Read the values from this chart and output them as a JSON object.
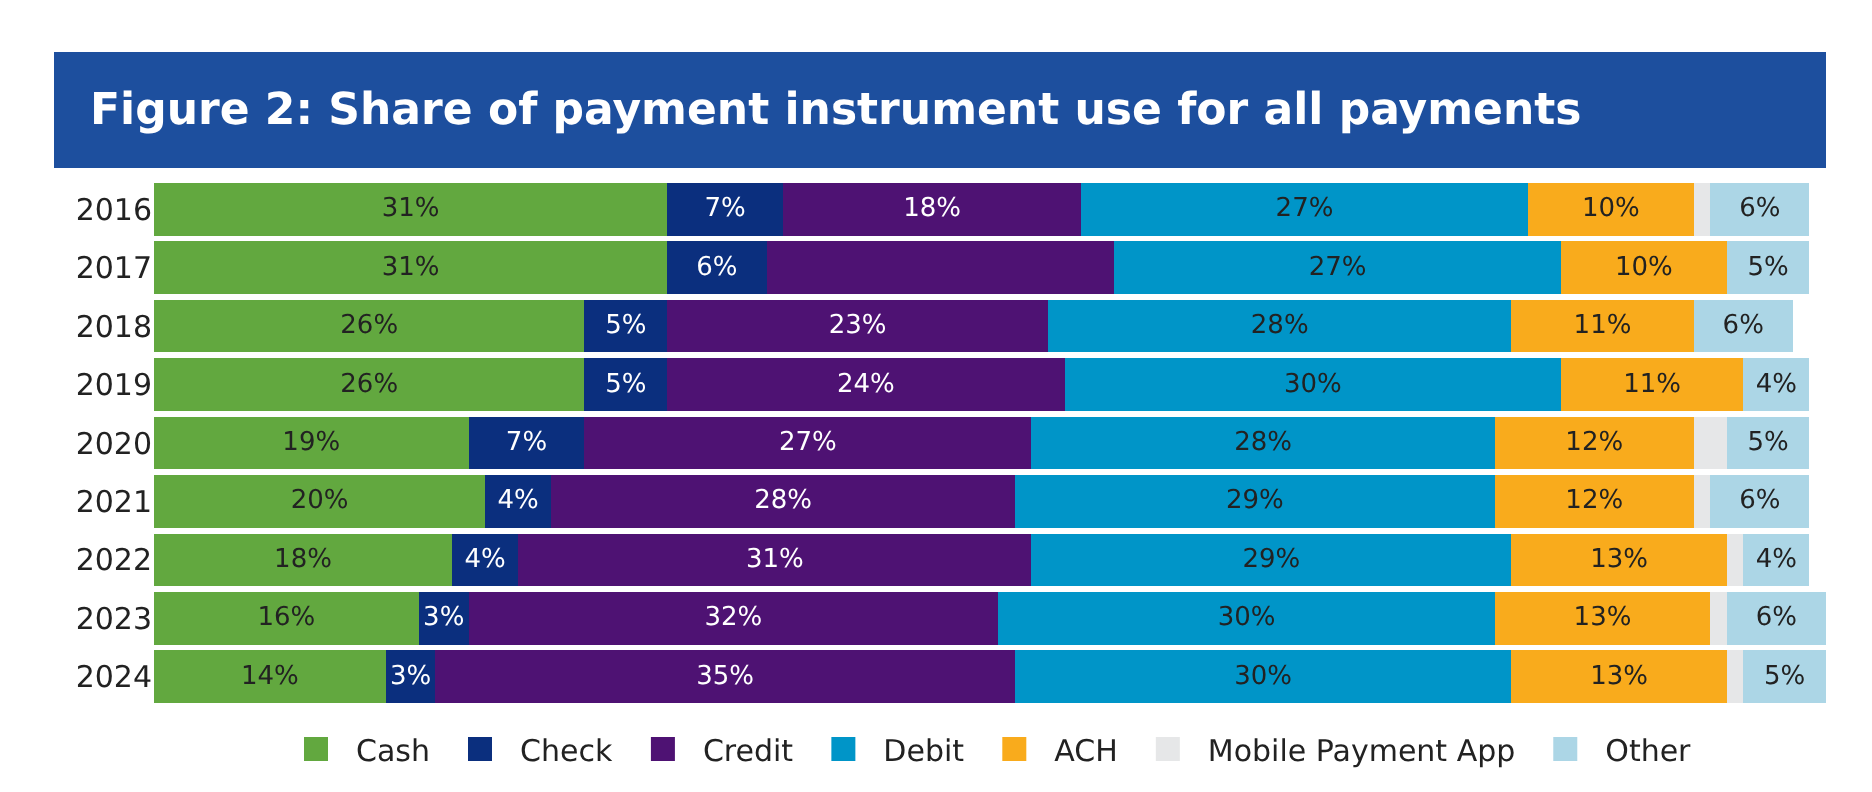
{
  "chart_data": {
    "type": "bar",
    "orientation": "horizontal",
    "stacked": true,
    "title": "Figure 2: Share of payment instrument use for all payments",
    "categories": [
      "2016",
      "2017",
      "2018",
      "2019",
      "2020",
      "2021",
      "2022",
      "2023",
      "2024"
    ],
    "xlim": [
      0,
      101
    ],
    "tick_labels": "y",
    "grid": false,
    "legend": "bottom",
    "series": [
      {
        "name": "Cash",
        "color": "#62a83f",
        "values": [
          31,
          31,
          26,
          26,
          19,
          20,
          18,
          16,
          14
        ],
        "value_labels": [
          "31%",
          "31%",
          "26%",
          "26%",
          "19%",
          "20%",
          "18%",
          "16%",
          "14%"
        ]
      },
      {
        "name": "Check",
        "color": "#0b2f7e",
        "values": [
          7,
          6,
          5,
          5,
          7,
          4,
          4,
          3,
          3
        ],
        "value_labels": [
          "7%",
          "6%",
          "5%",
          "5%",
          "7%",
          "4%",
          "4%",
          "3%",
          "3%"
        ]
      },
      {
        "name": "Credit",
        "color": "#4e1273",
        "values": [
          18,
          21,
          23,
          24,
          27,
          28,
          31,
          32,
          35
        ],
        "value_labels": [
          "18%",
          null,
          "23%",
          "24%",
          "27%",
          "28%",
          "31%",
          "32%",
          "35%"
        ]
      },
      {
        "name": "Debit",
        "color": "#0095c8",
        "values": [
          27,
          27,
          28,
          30,
          28,
          29,
          29,
          30,
          30
        ],
        "value_labels": [
          "27%",
          "27%",
          "28%",
          "30%",
          "28%",
          "29%",
          "29%",
          "30%",
          "30%"
        ]
      },
      {
        "name": "ACH",
        "color": "#f9ab1c",
        "values": [
          10,
          10,
          11,
          11,
          12,
          12,
          13,
          13,
          13
        ],
        "value_labels": [
          "10%",
          "10%",
          "11%",
          "11%",
          "12%",
          "12%",
          "13%",
          "13%",
          "13%"
        ]
      },
      {
        "name": "Mobile Payment App",
        "color": "#e6e7e8",
        "values": [
          1,
          null,
          null,
          null,
          2,
          1,
          1,
          1,
          1
        ],
        "value_labels": [
          null,
          null,
          null,
          null,
          null,
          null,
          null,
          null,
          null
        ]
      },
      {
        "name": "Other",
        "color": "#acd6e6",
        "values": [
          6,
          5,
          6,
          4,
          5,
          6,
          4,
          6,
          5
        ],
        "value_labels": [
          "6%",
          "5%",
          "6%",
          "4%",
          "5%",
          "6%",
          "4%",
          "6%",
          "5%"
        ]
      }
    ]
  }
}
